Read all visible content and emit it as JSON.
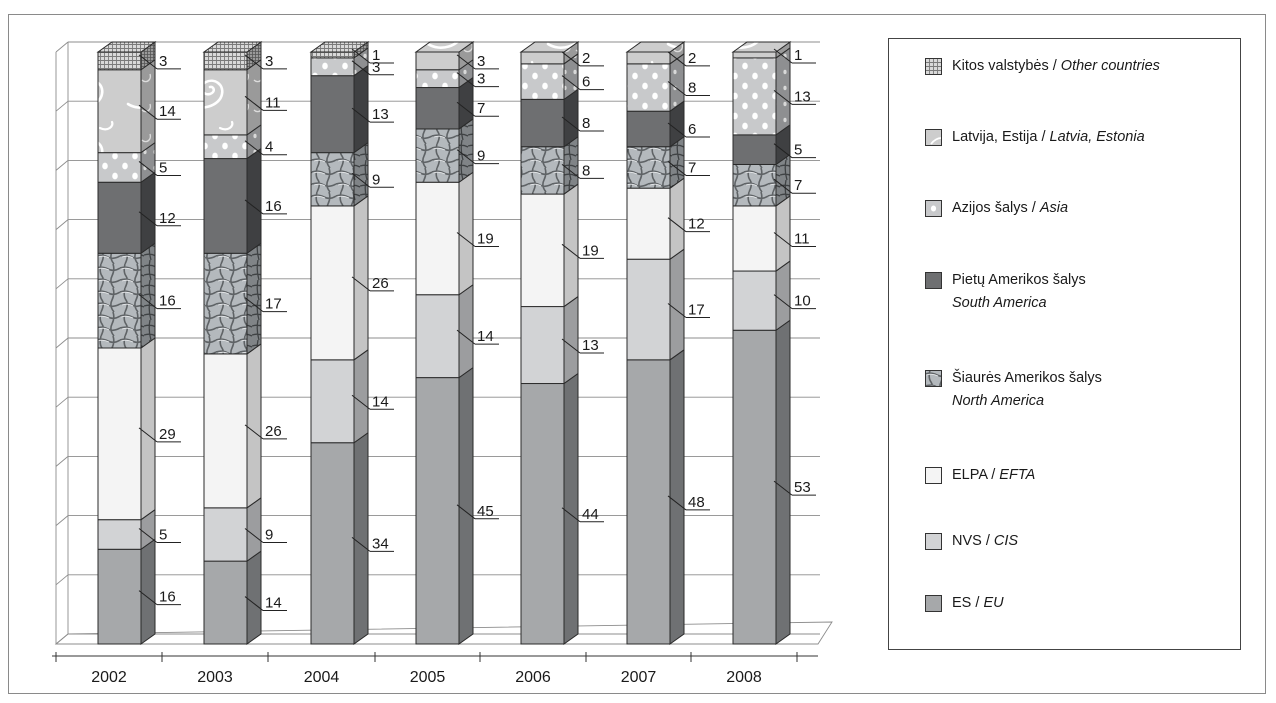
{
  "chart_data": {
    "type": "bar",
    "stacked": true,
    "three_d": true,
    "categories": [
      "2002",
      "2003",
      "2004",
      "2005",
      "2006",
      "2007",
      "2008"
    ],
    "series": [
      {
        "name": "ES / EU",
        "lt": "ES",
        "en": "EU",
        "pattern": "solid-dark",
        "color": "#a6a8aa",
        "values": [
          16,
          14,
          34,
          45,
          44,
          48,
          53
        ]
      },
      {
        "name": "NVS / CIS",
        "lt": "NVS",
        "en": "CIS",
        "pattern": "solid-light",
        "color": "#d2d3d5",
        "values": [
          5,
          9,
          14,
          14,
          13,
          17,
          10
        ]
      },
      {
        "name": "ELPA / EFTA",
        "lt": "ELPA",
        "en": "EFTA",
        "pattern": "solid-white",
        "color": "#f4f4f4",
        "values": [
          29,
          26,
          26,
          19,
          19,
          12,
          11
        ]
      },
      {
        "name": "Šiaurės Amerikos šalys North America",
        "lt": "Šiaurės Amerikos šalys",
        "en": "North America",
        "pattern": "cracked",
        "color": "#b4b9bd",
        "values": [
          16,
          17,
          9,
          9,
          8,
          7,
          7
        ]
      },
      {
        "name": "Pietų Amerikos šalys South America",
        "lt": "Pietų Amerikos šalys",
        "en": "South America",
        "pattern": "solid-darkest",
        "color": "#6e6f71",
        "values": [
          12,
          16,
          13,
          7,
          8,
          6,
          5
        ]
      },
      {
        "name": "Azijos šalys / Asia",
        "lt": "Azijos šalys",
        "en": "Asia",
        "pattern": "dots",
        "color": "#c8c9cb",
        "values": [
          5,
          4,
          3,
          3,
          6,
          8,
          13
        ]
      },
      {
        "name": "Latvija, Estija / Latvia, Estonia",
        "lt": "Latvija, Estija",
        "en": "Latvia, Estonia",
        "pattern": "swirl",
        "color": "#cdcdcd",
        "values": [
          14,
          11,
          0,
          3,
          2,
          2,
          1
        ]
      },
      {
        "name": "Kitos valstybės / Other countries",
        "lt": "Kitos valstybės",
        "en": "Other countries",
        "pattern": "grid",
        "color": "#b9b9b9",
        "values": [
          3,
          3,
          1,
          0,
          0,
          0,
          0
        ]
      }
    ],
    "ylim": [
      0,
      100
    ],
    "grid": true,
    "legend_position": "right",
    "title": "",
    "xlabel": "",
    "ylabel": ""
  },
  "legend": [
    {
      "id": "other",
      "lt": "Kitos valstybės / ",
      "en": "Other countries",
      "two_line": false
    },
    {
      "id": "latvia",
      "lt": "Latvija, Estija / ",
      "en": "Latvia, Estonia",
      "two_line": false
    },
    {
      "id": "asia",
      "lt": "Azijos šalys / ",
      "en": "Asia",
      "two_line": false
    },
    {
      "id": "samerica",
      "lt": "Pietų Amerikos šalys",
      "en": "South America",
      "two_line": true
    },
    {
      "id": "namerica",
      "lt": "Šiaurės Amerikos šalys",
      "en": "North America",
      "two_line": true
    },
    {
      "id": "efta",
      "lt": "ELPA / ",
      "en": "EFTA",
      "two_line": false
    },
    {
      "id": "cis",
      "lt": "NVS / ",
      "en": "CIS",
      "two_line": false
    },
    {
      "id": "eu",
      "lt": "ES / ",
      "en": "EU",
      "two_line": false
    }
  ]
}
